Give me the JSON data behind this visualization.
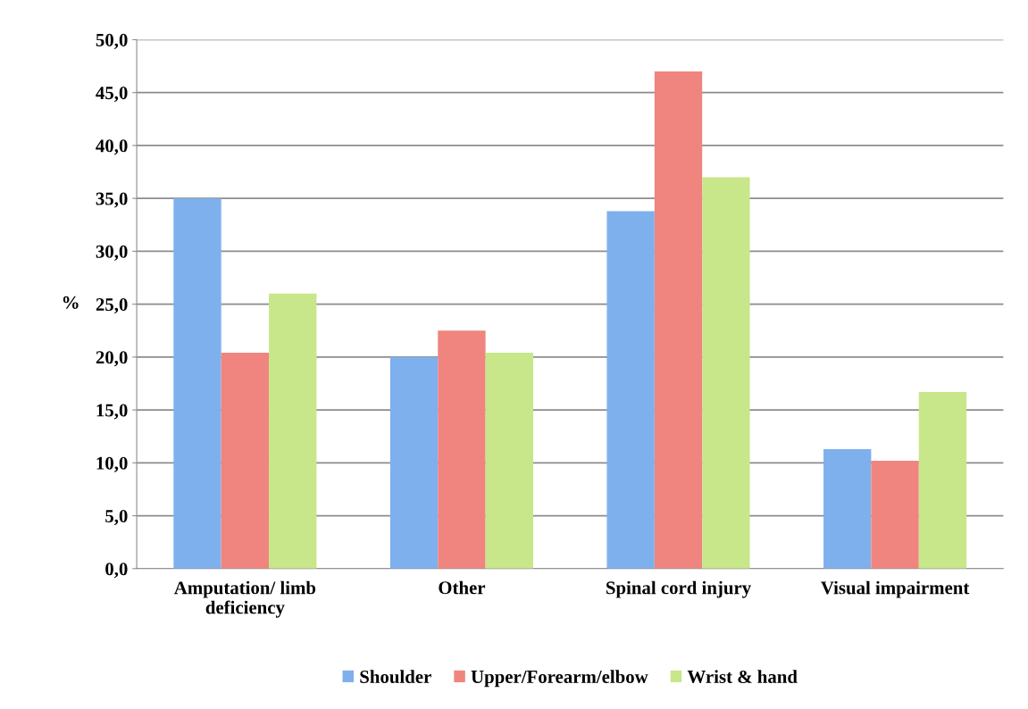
{
  "chart_data": {
    "type": "bar",
    "ylabel": "%",
    "categories": [
      "Amputation/ limb\ndeficiency",
      "Other",
      "Spinal cord injury",
      "Visual impairment"
    ],
    "series": [
      {
        "name": "Shoulder",
        "color": "#7fb0ee",
        "values": [
          35.0,
          20.0,
          33.8,
          11.3
        ]
      },
      {
        "name": "Upper/Forearm/elbow",
        "color": "#f0857f",
        "values": [
          20.4,
          22.5,
          47.0,
          10.2
        ]
      },
      {
        "name": "Wrist & hand",
        "color": "#c8e68a",
        "values": [
          26.0,
          20.4,
          37.0,
          16.7
        ]
      }
    ],
    "ylim": [
      0,
      50
    ],
    "yticks": [
      {
        "value": 0,
        "label": "0,0"
      },
      {
        "value": 5,
        "label": "5,0"
      },
      {
        "value": 10,
        "label": "10,0"
      },
      {
        "value": 15,
        "label": "15,0"
      },
      {
        "value": 20,
        "label": "20,0"
      },
      {
        "value": 25,
        "label": "25,0"
      },
      {
        "value": 30,
        "label": "30,0"
      },
      {
        "value": 35,
        "label": "35,0"
      },
      {
        "value": 40,
        "label": "40,0"
      },
      {
        "value": 45,
        "label": "45,0"
      },
      {
        "value": 50,
        "label": "50,0"
      }
    ],
    "grid": "y",
    "legend": "bottom"
  }
}
